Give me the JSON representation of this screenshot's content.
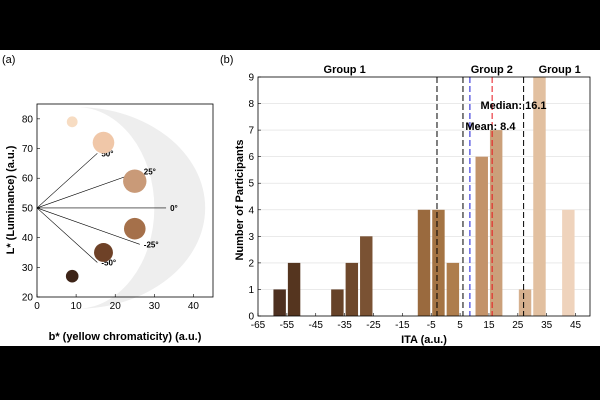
{
  "chart_data": [
    {
      "type": "scatter",
      "panel_label": "(a)",
      "xlabel": "b* (yellow chromaticity) (a.u.)",
      "ylabel": "L* (Luminance) (a.u.)",
      "xlim": [
        0,
        45
      ],
      "ylim": [
        20,
        85
      ],
      "xticks": [
        "0",
        "10",
        "20",
        "30",
        "40"
      ],
      "yticks": [
        "20",
        "30",
        "40",
        "50",
        "60",
        "70",
        "80"
      ],
      "origin": [
        0,
        50
      ],
      "angle_lines": [
        {
          "label": "50°",
          "deg": 50
        },
        {
          "label": "25°",
          "deg": 25
        },
        {
          "label": "0°",
          "deg": 0
        },
        {
          "label": "-25°",
          "deg": -25
        },
        {
          "label": "-50°",
          "deg": -50
        }
      ],
      "points": [
        {
          "b": 9,
          "L": 79,
          "size": 1.2,
          "color": "#f7dcc2"
        },
        {
          "b": 17,
          "L": 72,
          "size": 2.4,
          "color": "#f0c7a8"
        },
        {
          "b": 25,
          "L": 59,
          "size": 2.6,
          "color": "#c99a78"
        },
        {
          "b": 25,
          "L": 43,
          "size": 2.4,
          "color": "#a5704a"
        },
        {
          "b": 17,
          "L": 35,
          "size": 2.1,
          "color": "#6e4127"
        },
        {
          "b": 9,
          "L": 27,
          "size": 1.4,
          "color": "#3d2417"
        }
      ]
    },
    {
      "type": "bar",
      "panel_label": "(b)",
      "xlabel": "ITA (a.u.)",
      "ylabel": "Number of Participants",
      "xlim": [
        -65,
        50
      ],
      "ylim": [
        0,
        9
      ],
      "xticks": [
        "-65",
        "-55",
        "-45",
        "-35",
        "-25",
        "-15",
        "-5",
        "5",
        "15",
        "25",
        "35",
        "45"
      ],
      "yticks": [
        "0",
        "1",
        "2",
        "3",
        "4",
        "5",
        "6",
        "7",
        "8",
        "9"
      ],
      "bars": [
        {
          "x": -57.5,
          "value": 1,
          "color": "#4d3020"
        },
        {
          "x": -52.5,
          "value": 2,
          "color": "#55351f"
        },
        {
          "x": -37.5,
          "value": 1,
          "color": "#664228"
        },
        {
          "x": -32.5,
          "value": 2,
          "color": "#6e482c"
        },
        {
          "x": -27.5,
          "value": 3,
          "color": "#7a5233"
        },
        {
          "x": -7.5,
          "value": 4,
          "color": "#9a6a3e"
        },
        {
          "x": -2.5,
          "value": 4,
          "color": "#a47444"
        },
        {
          "x": 2.5,
          "value": 2,
          "color": "#ae7d4c"
        },
        {
          "x": 12.5,
          "value": 6,
          "color": "#c3936a"
        },
        {
          "x": 17.5,
          "value": 7,
          "color": "#cba07a"
        },
        {
          "x": 27.5,
          "value": 1,
          "color": "#d6b08e"
        },
        {
          "x": 32.5,
          "value": 9,
          "color": "#e2c0a0"
        },
        {
          "x": 42.5,
          "value": 4,
          "color": "#efd3bc"
        }
      ],
      "group_dividers": [
        -3,
        6,
        27
      ],
      "groups": [
        {
          "label": "Group 1",
          "x": -35
        },
        {
          "label": "Group 2",
          "x": 16
        },
        {
          "label": "Group 1",
          "x": 39.5
        }
      ],
      "median": {
        "label": "Median: 16.1",
        "value": 16.1,
        "color": "#e8141c"
      },
      "mean": {
        "label": "Mean: 8.4",
        "value": 8.4,
        "color": "#1a1ad6"
      }
    }
  ]
}
